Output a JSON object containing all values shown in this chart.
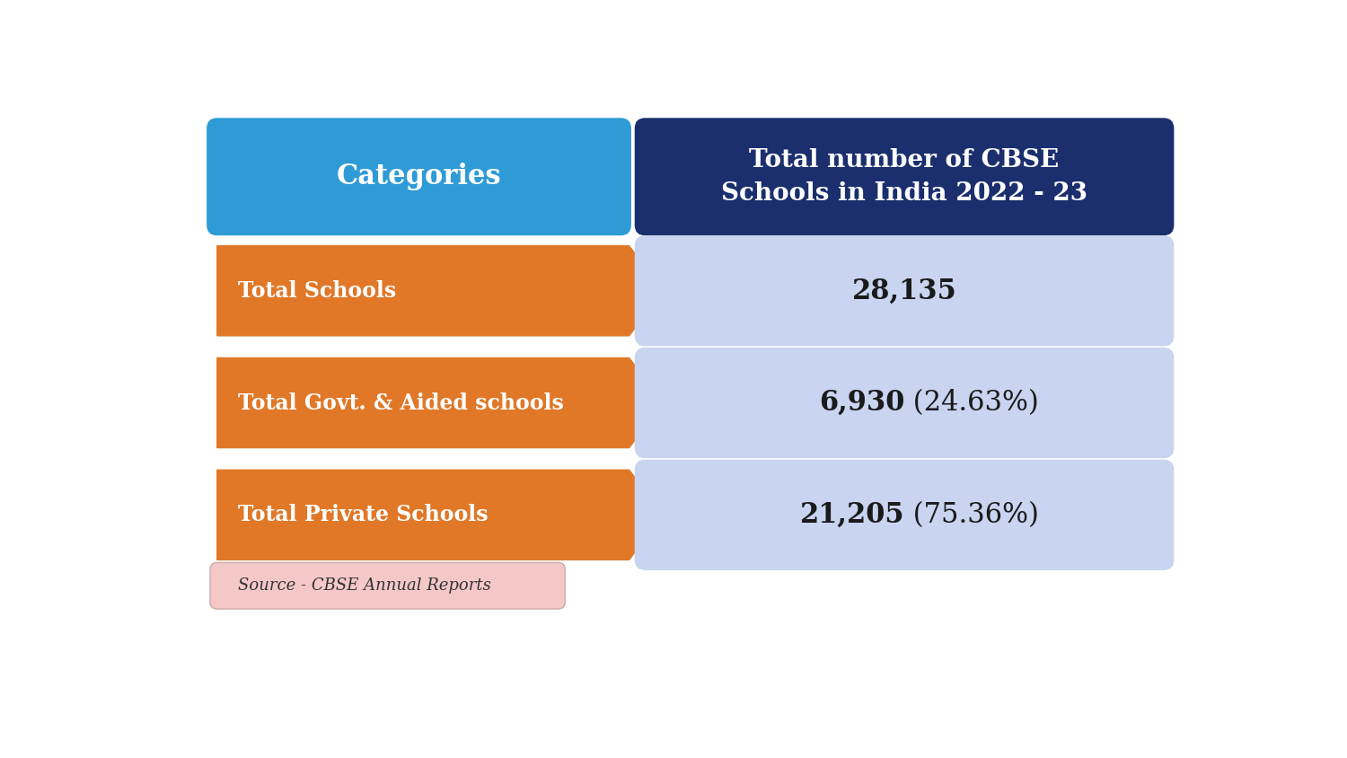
{
  "title_col1": "Categories",
  "title_col2": "Total number of CBSE\nSchools in India 2022 - 23",
  "header_col1_color": "#2E9BD6",
  "header_col2_color": "#1B2F6E",
  "header_text_color": "#FFFFFF",
  "rows": [
    {
      "category": "Total Schools",
      "value_bold": "28,135",
      "value_normal": "",
      "arrow_color": "#E07828",
      "box_color": "#C8D4F0"
    },
    {
      "category": "Total Govt. & Aided schools",
      "value_bold": "6,930",
      "value_normal": " (24.63%)",
      "arrow_color": "#E07828",
      "box_color": "#C8D4F0"
    },
    {
      "category": "Total Private Schools",
      "value_bold": "21,205",
      "value_normal": " (75.36%)",
      "arrow_color": "#E07828",
      "box_color": "#C8D4F0"
    }
  ],
  "source_text": "Source - CBSE Annual Reports",
  "source_box_color": "#F5C8C8",
  "bg_color": "#FFFFFF",
  "figsize": [
    15.0,
    8.44
  ]
}
